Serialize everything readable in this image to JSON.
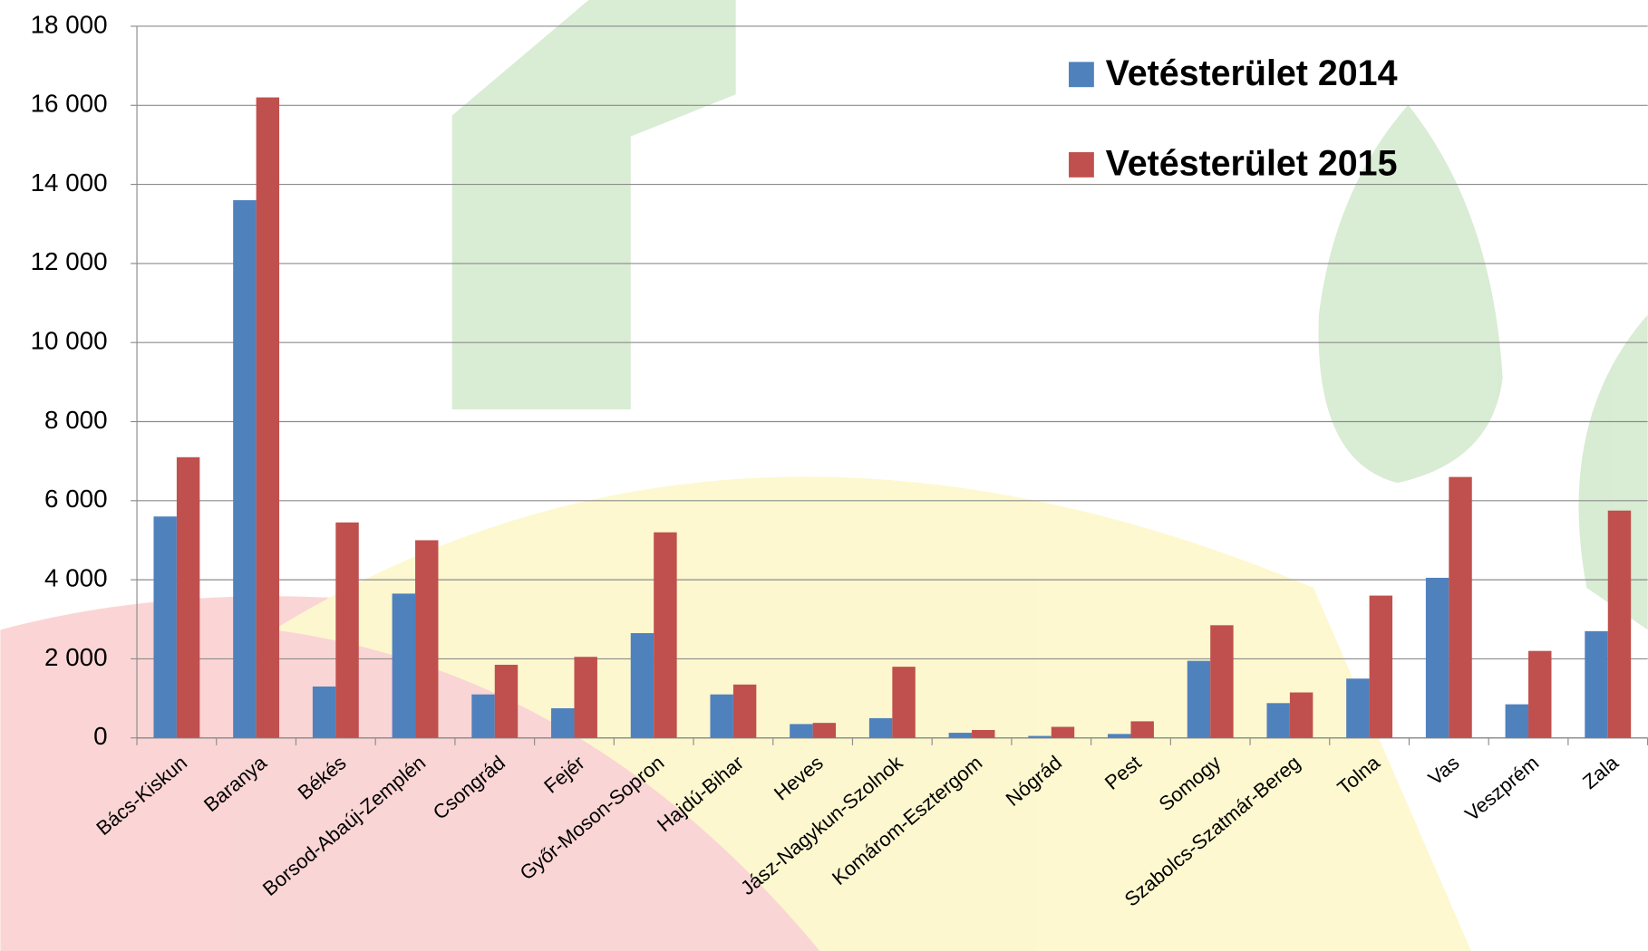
{
  "chart_data": {
    "type": "bar",
    "categories": [
      "Bács-Kiskun",
      "Baranya",
      "Békés",
      "Borsod-Abaúj-Zemplén",
      "Csongrád",
      "Fejér",
      "Győr-Moson-Sopron",
      "Hajdú-Bihar",
      "Heves",
      "Jász-Nagykun-Szolnok",
      "Komárom-Esztergom",
      "Nógrád",
      "Pest",
      "Somogy",
      "Szabolcs-Szatmár-Bereg",
      "Tolna",
      "Vas",
      "Veszprém",
      "Zala"
    ],
    "series": [
      {
        "name": "Vetésterület 2014",
        "color": "#4f81bd",
        "values": [
          5600,
          13600,
          1300,
          3650,
          1100,
          750,
          2650,
          1100,
          350,
          500,
          130,
          50,
          100,
          1950,
          880,
          1500,
          4050,
          850,
          2700
        ]
      },
      {
        "name": "Vetésterület 2015",
        "color": "#c0504d",
        "values": [
          7100,
          16200,
          5450,
          5000,
          1850,
          2050,
          5200,
          1350,
          380,
          1800,
          200,
          280,
          420,
          2850,
          1150,
          3600,
          6600,
          2200,
          5750
        ]
      }
    ],
    "ylim": [
      0,
      18000
    ],
    "yticks": [
      0,
      {
        "value": 2000,
        "label": "2 000"
      },
      {
        "value": 4000,
        "label": "4 000"
      },
      {
        "value": 6000,
        "label": "6 000"
      },
      {
        "value": 8000,
        "label": "8 000"
      },
      {
        "value": 10000,
        "label": "10 000"
      },
      {
        "value": 12000,
        "label": "12 000"
      },
      {
        "value": 14000,
        "label": "14 000"
      },
      {
        "value": 16000,
        "label": "16 000"
      },
      {
        "value": 18000,
        "label": "18 000"
      }
    ],
    "grid": true,
    "legend": "upper right"
  }
}
